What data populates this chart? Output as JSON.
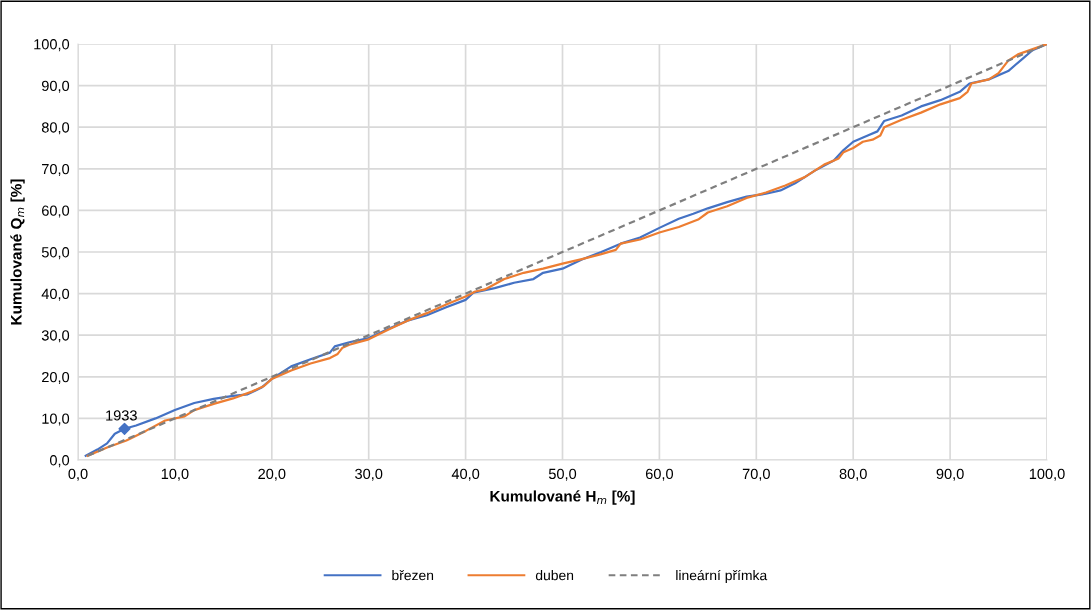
{
  "chart_data": {
    "type": "line",
    "xlabel": "Kumulované H$_{m}$ [%]",
    "ylabel": "Kumulované Q$_{m}$ [%]",
    "xlim": [
      0,
      100
    ],
    "ylim": [
      0,
      100
    ],
    "xticks": [
      {
        "value": 0,
        "label": "0,0"
      },
      {
        "value": 10,
        "label": "10,0"
      },
      {
        "value": 20,
        "label": "20,0"
      },
      {
        "value": 30,
        "label": "30,0"
      },
      {
        "value": 40,
        "label": "40,0"
      },
      {
        "value": 50,
        "label": "50,0"
      },
      {
        "value": 60,
        "label": "60,0"
      },
      {
        "value": 70,
        "label": "70,0"
      },
      {
        "value": 80,
        "label": "80,0"
      },
      {
        "value": 90,
        "label": "90,0"
      },
      {
        "value": 100,
        "label": "100,0"
      }
    ],
    "yticks": [
      {
        "value": 0,
        "label": "0,0"
      },
      {
        "value": 10,
        "label": "10,0"
      },
      {
        "value": 20,
        "label": "20,0"
      },
      {
        "value": 30,
        "label": "30,0"
      },
      {
        "value": 40,
        "label": "40,0"
      },
      {
        "value": 50,
        "label": "50,0"
      },
      {
        "value": 60,
        "label": "60,0"
      },
      {
        "value": 70,
        "label": "70,0"
      },
      {
        "value": 80,
        "label": "80,0"
      },
      {
        "value": 90,
        "label": "90,0"
      },
      {
        "value": 100,
        "label": "100,0"
      }
    ],
    "grid": true,
    "legend": "bottom",
    "series": [
      {
        "name": "březen",
        "color": "#4472c4",
        "line_style": "solid",
        "x": [
          0.8,
          2,
          3,
          3.8,
          4.8,
          6,
          8,
          10,
          12,
          14,
          16,
          17.5,
          19,
          20,
          22,
          24,
          26,
          26.5,
          28,
          30,
          32,
          34,
          36,
          38,
          40,
          40.8,
          43,
          45,
          47,
          48,
          50,
          52,
          54,
          56,
          58,
          60,
          62,
          63.5,
          65,
          67,
          69,
          71,
          72.5,
          74,
          76,
          78,
          79,
          80,
          81.5,
          82.5,
          83.2,
          85,
          87,
          89,
          91,
          92,
          94,
          96,
          97.5,
          98.5,
          100
        ],
        "values": [
          1,
          2.5,
          4,
          6.3,
          7.5,
          8.3,
          10,
          12,
          13.7,
          14.7,
          15.4,
          15.8,
          17.5,
          19.5,
          22.5,
          24.2,
          25.8,
          27.3,
          28.3,
          29.3,
          31.5,
          33.5,
          34.8,
          36.7,
          38.5,
          40.2,
          41.3,
          42.6,
          43.5,
          45,
          46,
          48.2,
          50,
          52,
          53.5,
          55.8,
          58,
          59.2,
          60.5,
          62,
          63.3,
          64,
          64.8,
          66.5,
          69.5,
          72,
          74.5,
          76.5,
          78,
          79,
          81.5,
          82.8,
          85,
          86.5,
          88.5,
          90.5,
          91.5,
          93.5,
          96.5,
          98.5,
          100
        ]
      },
      {
        "name": "duben",
        "color": "#ed7d31",
        "line_style": "solid",
        "x": [
          1,
          3,
          5,
          7,
          9,
          11,
          12,
          14,
          16,
          18,
          19.2,
          20,
          22,
          24,
          26,
          26.8,
          27.3,
          28,
          30,
          32,
          34,
          36,
          38,
          40,
          41,
          42,
          44,
          46,
          48,
          50,
          52,
          54,
          55.5,
          56,
          58,
          60,
          62,
          64,
          65,
          67,
          69,
          71,
          73,
          75,
          77,
          78.5,
          79,
          80,
          81,
          82,
          82.8,
          83.2,
          85,
          87,
          89,
          91,
          91.8,
          92.2,
          94,
          95,
          96,
          97,
          100
        ],
        "values": [
          1,
          3,
          4.7,
          7,
          9.5,
          10.5,
          12,
          13.5,
          14.8,
          16.5,
          17.8,
          19.5,
          21.5,
          23.2,
          24.5,
          25.5,
          27,
          27.7,
          29,
          31.3,
          33.5,
          35.3,
          37.4,
          39.3,
          40.5,
          41,
          43.5,
          45,
          46,
          47.2,
          48.3,
          49.5,
          50.5,
          52,
          53,
          54.7,
          56,
          57.8,
          59.5,
          61,
          63,
          64.3,
          66,
          68,
          71,
          72.5,
          74,
          75,
          76.5,
          77,
          78,
          80,
          81.8,
          83.5,
          85.5,
          87,
          88.5,
          90.5,
          91.5,
          93,
          96,
          97.5,
          100
        ]
      },
      {
        "name": "lineární přímka",
        "color": "#7f7f7f",
        "line_style": "dashed",
        "x": [
          1,
          100
        ],
        "values": [
          1,
          100
        ]
      },
      {
        "type": "scatter",
        "color": "#4472c4",
        "marker": "diamond",
        "x": [
          4.8
        ],
        "values": [
          7.5
        ]
      }
    ],
    "annotations": [
      {
        "text": "1933",
        "x": 4.8,
        "y": 7.5
      }
    ]
  }
}
